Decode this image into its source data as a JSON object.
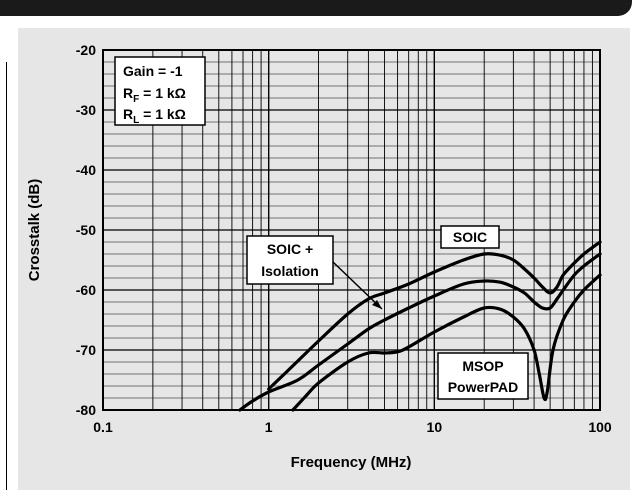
{
  "chart_data": {
    "type": "line",
    "xscale": "log",
    "xlim": [
      0.1,
      100
    ],
    "ylim": [
      -80,
      -20
    ],
    "xlabel": "Frequency (MHz)",
    "ylabel": "Crosstalk (dB)",
    "x_ticks": [
      "0.1",
      "1",
      "10",
      "100"
    ],
    "y_ticks": [
      "-20",
      "-30",
      "-40",
      "-50",
      "-60",
      "-70",
      "-80"
    ],
    "grid": true,
    "conditions": {
      "line1": "Gain = -1",
      "line2": {
        "prefix": "R",
        "sub": "F",
        "rest": " = 1 kΩ"
      },
      "line3": {
        "prefix": "R",
        "sub": "L",
        "rest": " = 1 kΩ"
      }
    },
    "series": [
      {
        "name": "SOIC",
        "x": [
          1.0,
          1.3,
          2.0,
          3.0,
          4.0,
          5.0,
          7.0,
          10.0,
          15.0,
          20.0,
          25.0,
          30.0,
          35.0,
          40.0,
          45.0,
          50.0,
          55.0,
          60.0,
          70.0,
          80.0,
          100.0
        ],
        "y": [
          -76.5,
          -73.5,
          -68.5,
          -64.0,
          -61.5,
          -60.5,
          -59.0,
          -57.0,
          -55.0,
          -54.0,
          -54.2,
          -55.0,
          -56.5,
          -58.0,
          -59.5,
          -60.5,
          -59.5,
          -57.5,
          -55.5,
          -54.0,
          -52.0
        ]
      },
      {
        "name": "SOIC + Isolation",
        "x": [
          0.67,
          0.8,
          1.0,
          1.5,
          2.0,
          3.0,
          4.0,
          5.0,
          7.0,
          10.0,
          15.0,
          20.0,
          25.0,
          30.0,
          35.0,
          40.0,
          45.0,
          50.0,
          55.0,
          60.0,
          70.0,
          80.0,
          100.0
        ],
        "y": [
          -80.0,
          -78.5,
          -77.0,
          -75.0,
          -72.5,
          -69.0,
          -66.5,
          -65.0,
          -63.0,
          -61.0,
          -59.0,
          -58.5,
          -58.7,
          -59.5,
          -60.5,
          -62.0,
          -63.0,
          -63.0,
          -61.5,
          -60.0,
          -57.5,
          -56.0,
          -54.0
        ]
      },
      {
        "name": "MSOP PowerPAD",
        "x": [
          1.4,
          1.7,
          2.0,
          3.0,
          4.0,
          5.0,
          6.0,
          7.0,
          10.0,
          15.0,
          20.0,
          25.0,
          30.0,
          35.0,
          40.0,
          43.0,
          46.0,
          48.0,
          52.0,
          60.0,
          70.0,
          80.0,
          100.0
        ],
        "y": [
          -80.0,
          -77.5,
          -75.5,
          -72.0,
          -70.5,
          -70.5,
          -70.3,
          -69.5,
          -67.0,
          -64.5,
          -63.0,
          -63.2,
          -64.5,
          -66.5,
          -70.0,
          -74.0,
          -78.0,
          -77.0,
          -70.0,
          -65.0,
          -62.0,
          -60.0,
          -57.5
        ]
      }
    ],
    "annotations": [
      {
        "text": "SOIC",
        "series": "SOIC"
      },
      {
        "lines": [
          "SOIC +",
          "Isolation"
        ],
        "series": "SOIC + Isolation"
      },
      {
        "lines": [
          "MSOP",
          "PowerPAD"
        ],
        "series": "MSOP PowerPAD"
      }
    ]
  }
}
